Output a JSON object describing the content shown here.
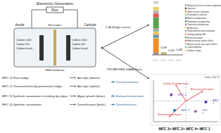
{
  "diagram": {
    "header": "Electricity Generation",
    "resistor": "Rext",
    "anode": "Anode",
    "cathode": "Cathode",
    "electrodes": "Electrodes",
    "membrane": "PEM membrane",
    "anode_materials": [
      "Carbon cloth",
      "Carbon felt",
      "Carbon brush"
    ],
    "cathode_materials": [
      "Carbon cloth",
      "Carbon felt",
      "Carbon brush"
    ],
    "configs": [
      {
        "label": "MFC 1) Raw sludge",
        "cathode": "Azo dye (abiotic)"
      },
      {
        "label": "MFC 2) Thermochemically pretreated sludge",
        "cathode": "Azo dye (abiotic)"
      },
      {
        "label": "MFC 3) Synthetic wastewater including dry algae",
        "cathode": "Algae growth (biotic)"
      },
      {
        "label": "MFC 4) Synthetic wastewater",
        "cathode": "Denitrification (biotic)"
      }
    ],
    "outputs": [
      "Decolorized water",
      "Biomass/treated water",
      "Denitrified water"
    ],
    "arrows": [
      "LCA (Single scores)",
      "PROMETHEE (GAIA Plane)"
    ],
    "ranking": "MFC 3> MFC 2> MFC 4> MFC 1"
  },
  "chart_data": [
    {
      "type": "bar",
      "stacked": true,
      "categories": [
        "MFC 1",
        "MFC 2",
        "MFC 3",
        "MFC 4"
      ],
      "totals": [
        10.2,
        0.599,
        0.022,
        0.088
      ],
      "series": [
        {
          "name": "Mineral, fossil & ren resource depletion",
          "color": "#9e9e9e",
          "values": [
            0.4,
            0.02,
            0.001,
            0.003
          ]
        },
        {
          "name": "Land use",
          "color": "#5b3a29",
          "values": [
            0.1,
            0.01,
            0,
            0.001
          ]
        },
        {
          "name": "Water resource depletion",
          "color": "#f28e2b",
          "values": [
            3.0,
            0.2,
            0.008,
            0.03
          ]
        },
        {
          "name": "Freshwater ecotoxicity",
          "color": "#8cd17d",
          "values": [
            0.2,
            0.01,
            0,
            0.001
          ]
        },
        {
          "name": "Marine eutrophication",
          "color": "#4e79a7",
          "values": [
            0.3,
            0.02,
            0.001,
            0.003
          ]
        },
        {
          "name": "Freshwater eutrophication",
          "color": "#2ca02c",
          "values": [
            0.1,
            0.01,
            0,
            0.001
          ]
        },
        {
          "name": "Terrestrial eutrophication",
          "color": "#b07aa1",
          "values": [
            0.3,
            0.02,
            0.001,
            0.003
          ]
        },
        {
          "name": "Acidification",
          "color": "#edc948",
          "values": [
            0.6,
            0.04,
            0.002,
            0.006
          ]
        },
        {
          "name": "Photochemical ozone formation",
          "color": "#76b7b2",
          "values": [
            0.4,
            0.03,
            0.001,
            0.004
          ]
        },
        {
          "name": "Ionizing radiation HH",
          "color": "#ff9da7",
          "values": [
            0.2,
            0.01,
            0,
            0.001
          ]
        },
        {
          "name": "Particulate matter",
          "color": "#59a14f",
          "values": [
            2.4,
            0.13,
            0.005,
            0.02
          ]
        },
        {
          "name": "Human toxicity, cancer effects",
          "color": "#e15759",
          "values": [
            0.8,
            0.04,
            0.001,
            0.006
          ]
        },
        {
          "name": "Human toxicity, non-cancer effects",
          "color": "#bab0ac",
          "values": [
            0.6,
            0.03,
            0.001,
            0.005
          ]
        },
        {
          "name": "Ozone depletion",
          "color": "#86bcb6",
          "values": [
            0.1,
            0.002,
            0,
            0.001
          ]
        },
        {
          "name": "Climate change",
          "color": "#f1ce63",
          "values": [
            0.7,
            0.027,
            0.001,
            0.003
          ]
        }
      ]
    },
    {
      "type": "scatter",
      "subtitle": "Delta: 100 %",
      "xlim": [
        -1,
        1
      ],
      "ylim": [
        -1,
        1
      ],
      "tick_labels": false,
      "color": "#d62728",
      "points": [
        {
          "name": "MFC 1",
          "x": 0.62,
          "y": -0.05,
          "color": "#3b3bb3"
        },
        {
          "name": "MFC 2",
          "x": -0.45,
          "y": 0.3,
          "color": "#7b3fb5"
        },
        {
          "name": "MFC 3",
          "x": -0.35,
          "y": -0.45,
          "color": "#1f77b4"
        },
        {
          "name": "MFC 4",
          "x": 0.3,
          "y": -0.5,
          "color": "#9467bd"
        }
      ],
      "criteria": [
        {
          "name": "Quality of treated water",
          "x": -0.3,
          "y": 0.75
        },
        {
          "name": "Electricity generation",
          "x": 0.5,
          "y": 0.45
        },
        {
          "name": "Environmental impact",
          "x": -0.5,
          "y": -0.75
        }
      ]
    }
  ]
}
